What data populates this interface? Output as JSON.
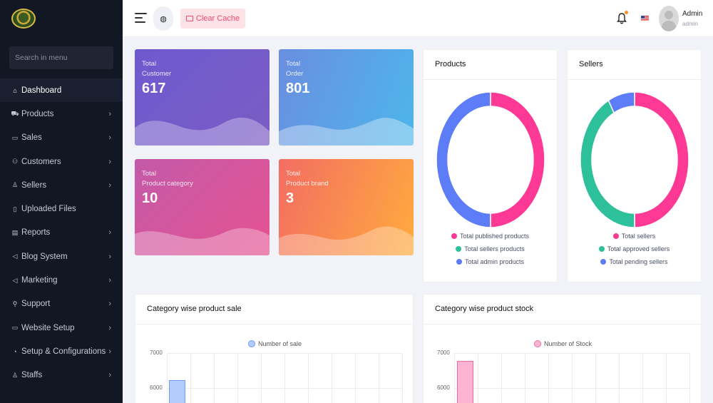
{
  "sidebar": {
    "search_placeholder": "Search in menu",
    "items": [
      {
        "label": "Dashboard",
        "icon": "home-icon",
        "glyph": "⌂",
        "chevron": false,
        "active": true
      },
      {
        "label": "Products",
        "icon": "cart-icon",
        "glyph": "⛟",
        "chevron": true
      },
      {
        "label": "Sales",
        "icon": "money-icon",
        "glyph": "▭",
        "chevron": true
      },
      {
        "label": "Customers",
        "icon": "users-icon",
        "glyph": "⚇",
        "chevron": true
      },
      {
        "label": "Sellers",
        "icon": "user-icon",
        "glyph": "♙",
        "chevron": true
      },
      {
        "label": "Uploaded Files",
        "icon": "folder-icon",
        "glyph": "▯",
        "chevron": false
      },
      {
        "label": "Reports",
        "icon": "file-icon",
        "glyph": "▤",
        "chevron": true
      },
      {
        "label": "Blog System",
        "icon": "bullhorn-icon",
        "glyph": "◁",
        "chevron": true
      },
      {
        "label": "Marketing",
        "icon": "megaphone-icon",
        "glyph": "◁",
        "chevron": true
      },
      {
        "label": "Support",
        "icon": "link-icon",
        "glyph": "⚲",
        "chevron": true
      },
      {
        "label": "Website Setup",
        "icon": "desktop-icon",
        "glyph": "▭",
        "chevron": true
      },
      {
        "label": "Setup & Configurations",
        "icon": "dashboard-icon",
        "glyph": "◔",
        "chevron": true
      },
      {
        "label": "Staffs",
        "icon": "staff-icon",
        "glyph": "♙",
        "chevron": true
      }
    ]
  },
  "topbar": {
    "clear_cache": "Clear Cache",
    "user_name": "Admin",
    "user_role": "admin"
  },
  "stats": [
    {
      "line1": "Total",
      "line2": "Customer",
      "value": "617"
    },
    {
      "line1": "Total",
      "line2": "Order",
      "value": "801"
    },
    {
      "line1": "Total",
      "line2": "Product category",
      "value": "10"
    },
    {
      "line1": "Total",
      "line2": "Product brand",
      "value": "3"
    }
  ],
  "products_card": {
    "title": "Products",
    "legend": [
      "Total published products",
      "Total sellers products",
      "Total admin products"
    ]
  },
  "sellers_card": {
    "title": "Sellers",
    "legend": [
      "Total sellers",
      "Total approved sellers",
      "Total pending sellers"
    ]
  },
  "sale_card": {
    "title": "Category wise product sale",
    "legend": "Number of sale",
    "yticks": [
      "7000",
      "6000"
    ]
  },
  "stock_card": {
    "title": "Category wise product stock",
    "legend": "Number of Stock",
    "yticks": [
      "7000",
      "6000"
    ]
  },
  "colors": {
    "pink": "#fd3995",
    "teal": "#2ebf9b",
    "blue": "#5c7cf8",
    "sale_bar": "#b3cdfb",
    "sale_bar_border": "#6f9af5",
    "stock_bar": "#fcb3d4",
    "stock_bar_border": "#f06aa6"
  },
  "chart_data": [
    {
      "type": "pie",
      "title": "Products",
      "labels": [
        "Total published products",
        "Total sellers products",
        "Total admin products"
      ],
      "values": [
        50,
        0,
        50
      ]
    },
    {
      "type": "pie",
      "title": "Sellers",
      "labels": [
        "Total sellers",
        "Total approved sellers",
        "Total pending sellers"
      ],
      "values": [
        50,
        42,
        8
      ]
    },
    {
      "type": "bar",
      "title": "Category wise product sale",
      "series": [
        {
          "name": "Number of sale",
          "values": [
            6220
          ]
        }
      ],
      "ylim_visible": [
        6000,
        7000
      ]
    },
    {
      "type": "bar",
      "title": "Category wise product stock",
      "series": [
        {
          "name": "Number of Stock",
          "values": [
            6780
          ]
        }
      ],
      "ylim_visible": [
        6000,
        7000
      ]
    }
  ]
}
